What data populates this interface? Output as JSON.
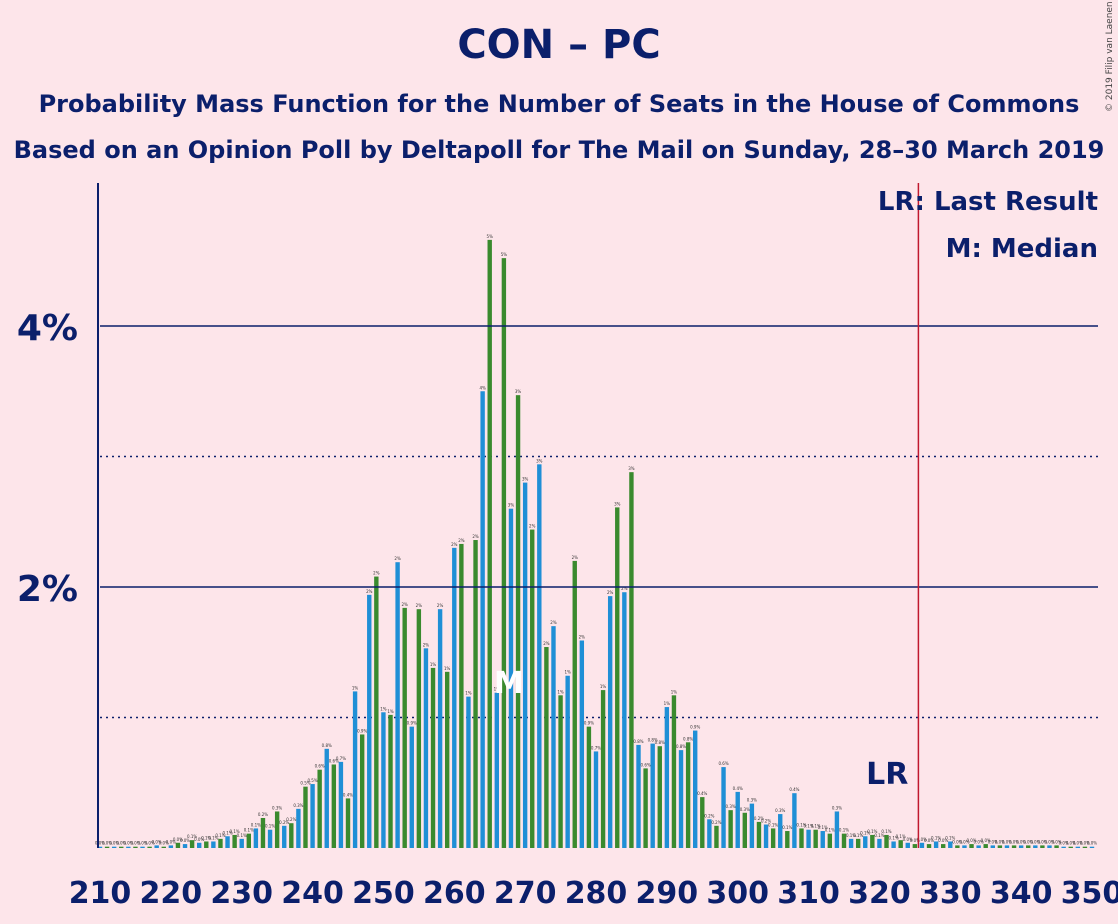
{
  "title": "CON – PC",
  "subtitle": "Probability Mass Function for the Number of Seats in the House of Commons",
  "subtitle2": "Based on an Opinion Poll by Deltapoll for The Mail on Sunday, 28–30 March 2019",
  "copyright": "© 2019 Filip van Laenen",
  "legend": {
    "lr": "LR: Last Result",
    "m": "M: Median"
  },
  "lr_marker": "LR",
  "median_marker": "M",
  "colors": {
    "blue": "#1f8fd6",
    "green": "#3a8a2e",
    "text": "#0b1f6b",
    "lr_line": "#c0182e",
    "background": "#fde5ea"
  },
  "chart_data": {
    "type": "bar",
    "xlabel": "",
    "ylabel": "",
    "xlim": [
      210,
      350
    ],
    "ylim": [
      0,
      5.1
    ],
    "y_unit": "%",
    "x_ticks": [
      210,
      220,
      230,
      240,
      250,
      260,
      270,
      280,
      290,
      300,
      310,
      320,
      330,
      340,
      350
    ],
    "y_ticks": [
      {
        "value": 2,
        "label": "2%"
      },
      {
        "value": 4,
        "label": "4%"
      }
    ],
    "minor_y_gridlines": [
      1,
      3
    ],
    "last_result": 326,
    "median": 268,
    "x_start": 210,
    "values": [
      0.01,
      0.01,
      0.01,
      0.01,
      0.01,
      0.01,
      0.01,
      0.01,
      0.02,
      0.01,
      0.02,
      0.04,
      0.03,
      0.06,
      0.04,
      0.05,
      0.05,
      0.07,
      0.09,
      0.1,
      0.07,
      0.11,
      0.15,
      0.23,
      0.14,
      0.28,
      0.17,
      0.19,
      0.3,
      0.47,
      0.49,
      0.6,
      0.76,
      0.64,
      0.66,
      0.38,
      1.2,
      0.87,
      1.94,
      2.08,
      1.04,
      1.02,
      2.19,
      1.84,
      0.93,
      1.83,
      1.53,
      1.38,
      1.83,
      1.35,
      2.3,
      2.33,
      1.16,
      2.36,
      3.5,
      4.66,
      1.19,
      4.52,
      2.6,
      3.47,
      2.8,
      2.44,
      2.94,
      1.54,
      1.7,
      1.17,
      1.32,
      2.2,
      1.59,
      0.93,
      0.74,
      1.21,
      1.93,
      2.61,
      1.96,
      2.88,
      0.79,
      0.61,
      0.8,
      0.78,
      1.08,
      1.17,
      0.75,
      0.81,
      0.9,
      0.39,
      0.22,
      0.17,
      0.62,
      0.29,
      0.43,
      0.27,
      0.34,
      0.2,
      0.18,
      0.15,
      0.26,
      0.13,
      0.42,
      0.15,
      0.14,
      0.14,
      0.13,
      0.11,
      0.28,
      0.11,
      0.07,
      0.07,
      0.09,
      0.1,
      0.07,
      0.1,
      0.05,
      0.06,
      0.04,
      0.03,
      0.04,
      0.03,
      0.05,
      0.03,
      0.05,
      0.02,
      0.02,
      0.03,
      0.02,
      0.03,
      0.02,
      0.02,
      0.02,
      0.02,
      0.02,
      0.02,
      0.02,
      0.02,
      0.02,
      0.02,
      0.01,
      0.01,
      0.01,
      0.01,
      0.01
    ],
    "series": [
      {
        "name": "",
        "color": "blue",
        "applies_to": "even seats"
      },
      {
        "name": "",
        "color": "green",
        "applies_to": "odd seats"
      }
    ]
  }
}
